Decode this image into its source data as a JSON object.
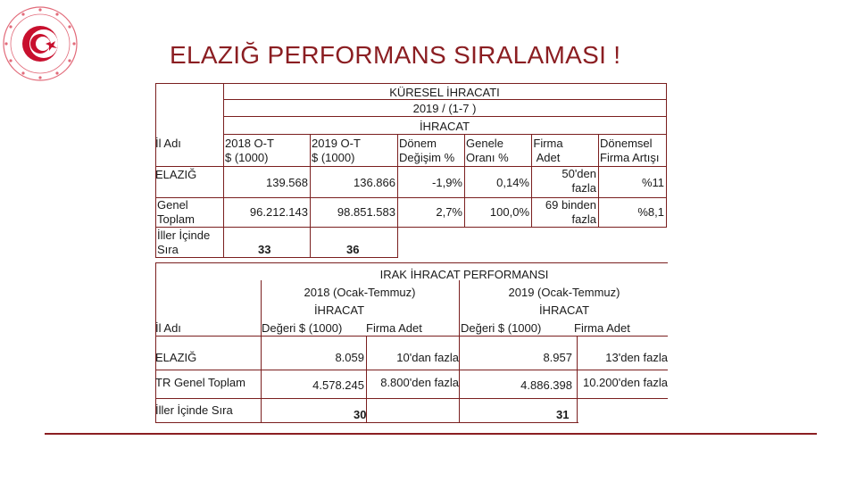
{
  "title": "ELAZIĞ PERFORMANS SIRALAMASI !",
  "colors": {
    "accent": "#8b1e22",
    "border": "#7a1f1f",
    "logo": "#c8102e"
  },
  "logo": {
    "icon": "ministry-seal-icon"
  },
  "global_export": {
    "heading": [
      "KÜRESEL İHRACATI",
      "2019 / (1-7 )",
      "İHRACAT"
    ],
    "row_label_header": "İl Adı",
    "col_2018": [
      "2018 O-T",
      "$ (1000)"
    ],
    "col_2019": [
      "2019 O-T",
      "$ (1000)"
    ],
    "col_change": [
      "Dönem",
      "Değişim %"
    ],
    "col_share": [
      "Genele",
      "Oranı %"
    ],
    "col_firms": [
      "Firma",
      "Adet"
    ],
    "col_firm_growth": [
      "Dönemsel",
      "Firma Artışı"
    ],
    "rows": [
      {
        "label": "ELAZIĞ",
        "v2018": "139.568",
        "v2019": "136.866",
        "change": "-1,9%",
        "share": "0,14%",
        "firms": [
          "50'den",
          "fazla"
        ],
        "growth": "%11"
      },
      {
        "label": [
          "Genel",
          "Toplam"
        ],
        "v2018": "96.212.143",
        "v2019": "98.851.583",
        "change": "2,7%",
        "share": "100,0%",
        "firms": [
          "69 binden",
          "fazla"
        ],
        "growth": "%8,1"
      },
      {
        "label": [
          "İller İçinde",
          "Sıra"
        ],
        "v2018": "33",
        "v2019": "36"
      }
    ]
  },
  "iraq_export": {
    "heading": "IRAK İHRACAT PERFORMANSI",
    "period_2018": "2018 (Ocak-Temmuz)",
    "period_2019": "2019 (Ocak-Temmuz)",
    "sub_2018": "İHRACAT",
    "sub_2019": "İHRACAT",
    "row_label_header": "İl Adı",
    "value_header": "Değeri $ (1000)",
    "firm_header": "Firma Adet",
    "rows": [
      {
        "label": "ELAZIĞ",
        "v2018": "8.059",
        "f2018": "10'dan fazla",
        "v2019": "8.957",
        "f2019": "13'den fazla"
      },
      {
        "label": "TR Genel Toplam",
        "v2018": "4.578.245",
        "f2018": "8.800'den fazla",
        "v2019": "4.886.398",
        "f2019": "10.200'den fazla"
      },
      {
        "label": "İller İçinde Sıra",
        "v2018": "30",
        "v2019": "31"
      }
    ]
  }
}
